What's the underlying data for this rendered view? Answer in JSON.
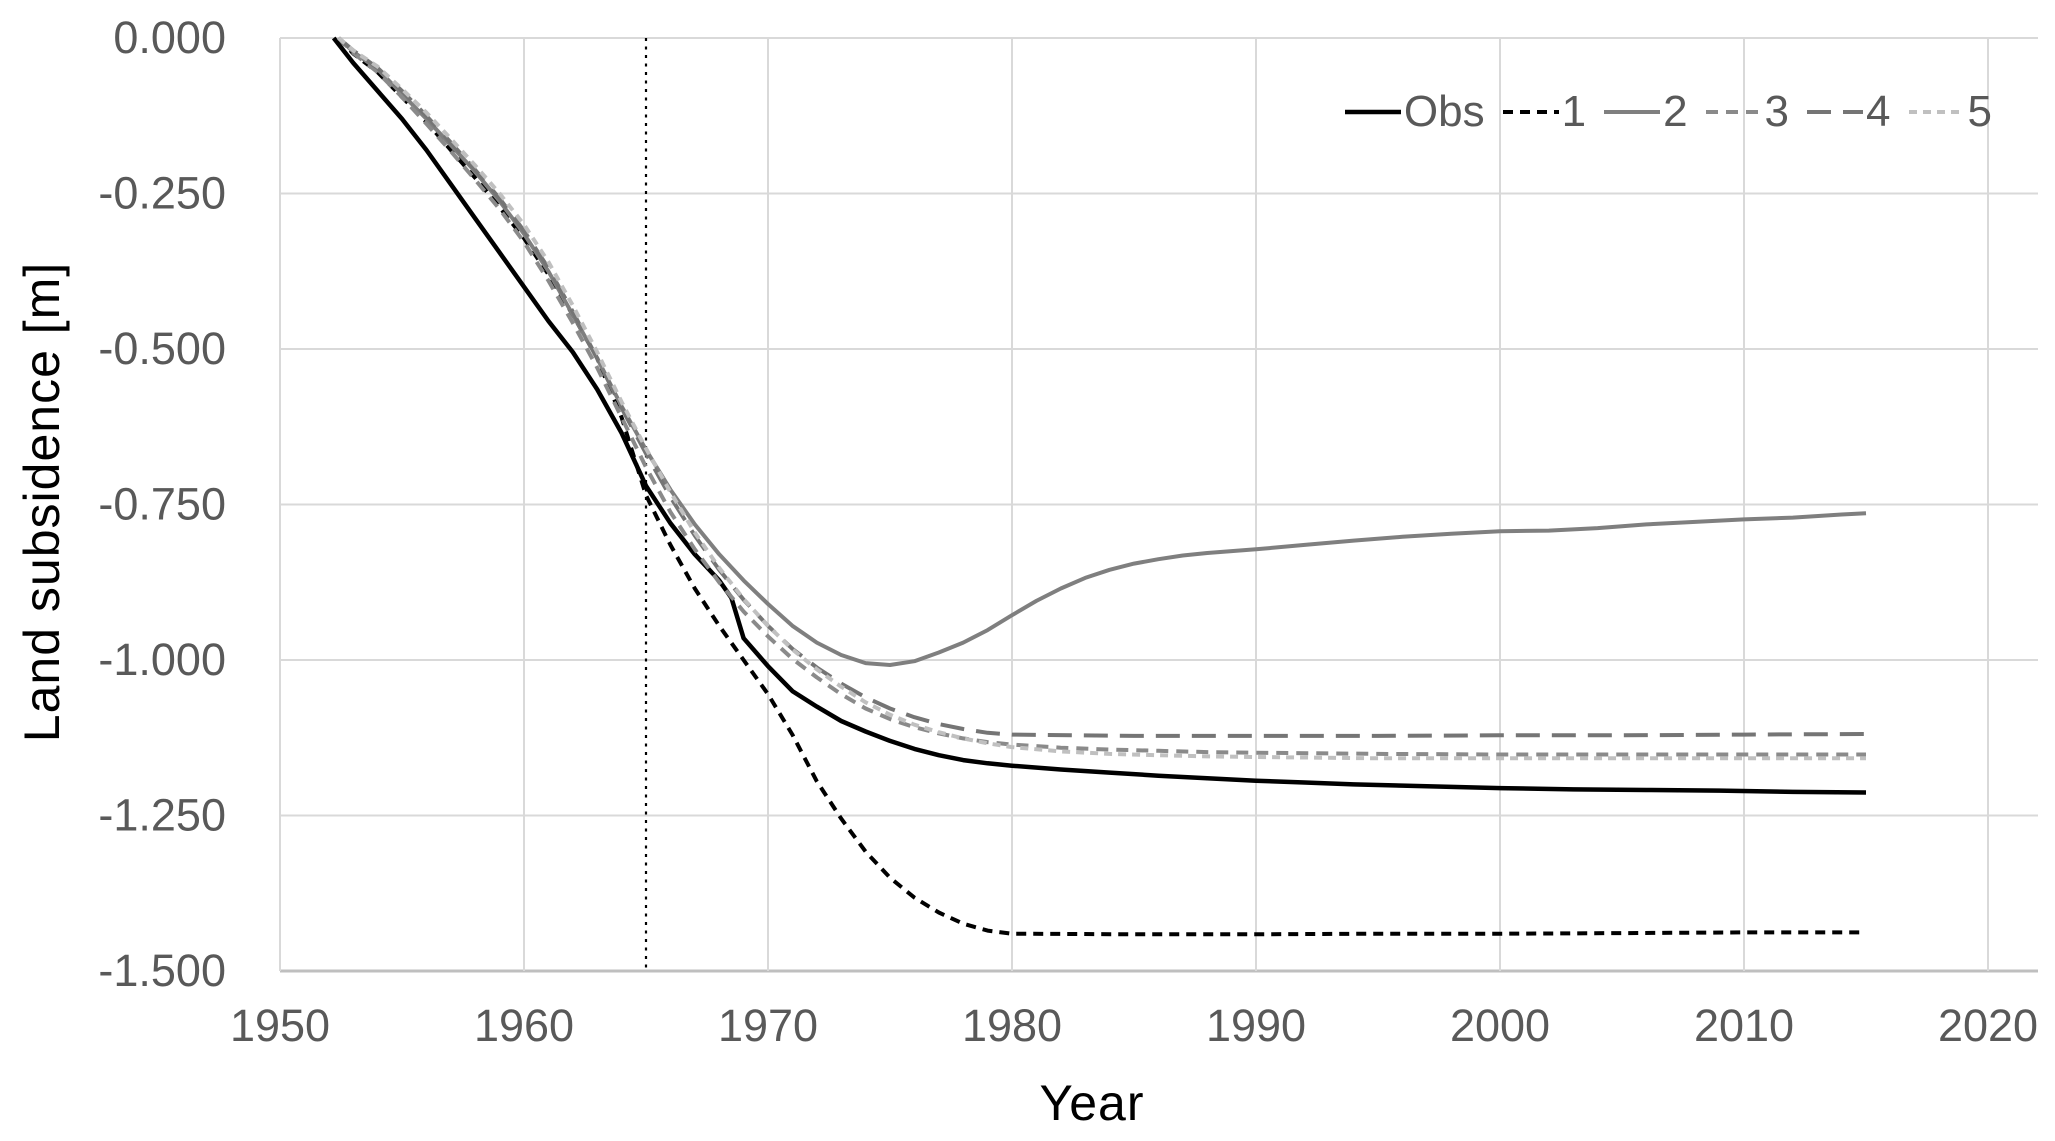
{
  "figure": {
    "x_axis_title": "Year",
    "y_axis_title": "Land subsidence [m]"
  },
  "colors": {
    "background": "#ffffff",
    "gridline": "#d9d9d9",
    "bottom_axis": "#bfbfbf",
    "tick_label": "#595959",
    "legend_text": "#595959",
    "annotation_line": "#000000"
  },
  "chart_data": {
    "type": "line",
    "title": "",
    "xlabel": "Year",
    "ylabel": "Land subsidence [m]",
    "xlim": [
      1950,
      2020
    ],
    "ylim": [
      -1.5,
      0
    ],
    "grid": true,
    "legend_position": "top-right-inside",
    "x_ticks": [
      1950,
      1960,
      1970,
      1980,
      1990,
      2000,
      2010,
      2020
    ],
    "x_tick_labels": [
      "1950",
      "1960",
      "1970",
      "1980",
      "1990",
      "2000",
      "2010",
      "2020"
    ],
    "y_ticks": [
      0,
      -0.25,
      -0.5,
      -0.75,
      -1.0,
      -1.25,
      -1.5
    ],
    "y_tick_labels": [
      "0.000",
      "-0.250",
      "-0.500",
      "-0.750",
      "-1.000",
      "-1.250",
      "-1.500"
    ],
    "annotations": [
      {
        "type": "vline",
        "x": 1965,
        "style": "dotted",
        "color": "#000000"
      }
    ],
    "series": [
      {
        "name": "Obs",
        "color": "#000000",
        "dash": "",
        "width": 4.5,
        "points": [
          [
            1952.2,
            0
          ],
          [
            1953,
            -0.04
          ],
          [
            1954,
            -0.085
          ],
          [
            1955,
            -0.13
          ],
          [
            1956,
            -0.18
          ],
          [
            1957,
            -0.235
          ],
          [
            1958,
            -0.29
          ],
          [
            1959,
            -0.345
          ],
          [
            1960,
            -0.4
          ],
          [
            1961,
            -0.455
          ],
          [
            1962,
            -0.505
          ],
          [
            1963,
            -0.565
          ],
          [
            1964,
            -0.635
          ],
          [
            1965,
            -0.72
          ],
          [
            1966,
            -0.78
          ],
          [
            1967,
            -0.83
          ],
          [
            1968,
            -0.872
          ],
          [
            1968.5,
            -0.9
          ],
          [
            1969,
            -0.965
          ],
          [
            1970,
            -1.01
          ],
          [
            1971,
            -1.05
          ],
          [
            1972,
            -1.075
          ],
          [
            1973,
            -1.098
          ],
          [
            1974,
            -1.115
          ],
          [
            1975,
            -1.13
          ],
          [
            1976,
            -1.143
          ],
          [
            1977,
            -1.153
          ],
          [
            1978,
            -1.161
          ],
          [
            1979,
            -1.166
          ],
          [
            1980,
            -1.17
          ],
          [
            1982,
            -1.176
          ],
          [
            1984,
            -1.181
          ],
          [
            1986,
            -1.186
          ],
          [
            1988,
            -1.19
          ],
          [
            1990,
            -1.194
          ],
          [
            1992,
            -1.197
          ],
          [
            1994,
            -1.2
          ],
          [
            1996,
            -1.202
          ],
          [
            1998,
            -1.204
          ],
          [
            2000,
            -1.206
          ],
          [
            2003,
            -1.208
          ],
          [
            2006,
            -1.209
          ],
          [
            2009,
            -1.21
          ],
          [
            2012,
            -1.212
          ],
          [
            2015,
            -1.213
          ]
        ]
      },
      {
        "name": "1",
        "color": "#000000",
        "dash": "10 7",
        "width": 4,
        "points": [
          [
            1952.4,
            0
          ],
          [
            1953,
            -0.025
          ],
          [
            1954,
            -0.055
          ],
          [
            1955,
            -0.095
          ],
          [
            1956,
            -0.135
          ],
          [
            1957,
            -0.18
          ],
          [
            1958,
            -0.225
          ],
          [
            1959,
            -0.272
          ],
          [
            1960,
            -0.322
          ],
          [
            1961,
            -0.38
          ],
          [
            1962,
            -0.445
          ],
          [
            1963,
            -0.515
          ],
          [
            1964,
            -0.61
          ],
          [
            1965,
            -0.735
          ],
          [
            1966,
            -0.815
          ],
          [
            1967,
            -0.885
          ],
          [
            1968,
            -0.945
          ],
          [
            1969,
            -1.0
          ],
          [
            1970,
            -1.055
          ],
          [
            1971,
            -1.12
          ],
          [
            1972,
            -1.195
          ],
          [
            1973,
            -1.255
          ],
          [
            1974,
            -1.308
          ],
          [
            1975,
            -1.35
          ],
          [
            1976,
            -1.382
          ],
          [
            1977,
            -1.406
          ],
          [
            1978,
            -1.424
          ],
          [
            1979,
            -1.435
          ],
          [
            1980,
            -1.44
          ],
          [
            1985,
            -1.441
          ],
          [
            1990,
            -1.441
          ],
          [
            1995,
            -1.44
          ],
          [
            2000,
            -1.44
          ],
          [
            2005,
            -1.439
          ],
          [
            2010,
            -1.438
          ],
          [
            2015,
            -1.438
          ]
        ]
      },
      {
        "name": "2",
        "color": "#7f7f7f",
        "dash": "",
        "width": 4,
        "points": [
          [
            1952.4,
            0
          ],
          [
            1953,
            -0.022
          ],
          [
            1954,
            -0.05
          ],
          [
            1955,
            -0.09
          ],
          [
            1956,
            -0.13
          ],
          [
            1957,
            -0.172
          ],
          [
            1958,
            -0.215
          ],
          [
            1959,
            -0.262
          ],
          [
            1960,
            -0.315
          ],
          [
            1961,
            -0.375
          ],
          [
            1962,
            -0.445
          ],
          [
            1963,
            -0.515
          ],
          [
            1964,
            -0.592
          ],
          [
            1965,
            -0.662
          ],
          [
            1966,
            -0.726
          ],
          [
            1967,
            -0.782
          ],
          [
            1968,
            -0.83
          ],
          [
            1969,
            -0.872
          ],
          [
            1970,
            -0.91
          ],
          [
            1971,
            -0.945
          ],
          [
            1972,
            -0.972
          ],
          [
            1973,
            -0.992
          ],
          [
            1974,
            -1.005
          ],
          [
            1975,
            -1.008
          ],
          [
            1976,
            -1.002
          ],
          [
            1977,
            -0.988
          ],
          [
            1978,
            -0.972
          ],
          [
            1979,
            -0.952
          ],
          [
            1980,
            -0.928
          ],
          [
            1981,
            -0.905
          ],
          [
            1982,
            -0.885
          ],
          [
            1983,
            -0.868
          ],
          [
            1984,
            -0.855
          ],
          [
            1985,
            -0.845
          ],
          [
            1986,
            -0.838
          ],
          [
            1987,
            -0.832
          ],
          [
            1988,
            -0.828
          ],
          [
            1989,
            -0.825
          ],
          [
            1990,
            -0.822
          ],
          [
            1992,
            -0.815
          ],
          [
            1994,
            -0.808
          ],
          [
            1996,
            -0.802
          ],
          [
            1998,
            -0.797
          ],
          [
            2000,
            -0.793
          ],
          [
            2002,
            -0.792
          ],
          [
            2004,
            -0.788
          ],
          [
            2006,
            -0.782
          ],
          [
            2008,
            -0.778
          ],
          [
            2010,
            -0.774
          ],
          [
            2012,
            -0.771
          ],
          [
            2014,
            -0.766
          ],
          [
            2015,
            -0.764
          ]
        ]
      },
      {
        "name": "3",
        "color": "#8a8a8a",
        "dash": "12 8",
        "width": 4,
        "points": [
          [
            1952.4,
            0
          ],
          [
            1953,
            -0.024
          ],
          [
            1954,
            -0.055
          ],
          [
            1955,
            -0.095
          ],
          [
            1956,
            -0.138
          ],
          [
            1957,
            -0.182
          ],
          [
            1958,
            -0.228
          ],
          [
            1959,
            -0.275
          ],
          [
            1960,
            -0.328
          ],
          [
            1961,
            -0.39
          ],
          [
            1962,
            -0.458
          ],
          [
            1963,
            -0.53
          ],
          [
            1964,
            -0.61
          ],
          [
            1965,
            -0.69
          ],
          [
            1966,
            -0.762
          ],
          [
            1967,
            -0.822
          ],
          [
            1968,
            -0.875
          ],
          [
            1969,
            -0.922
          ],
          [
            1970,
            -0.962
          ],
          [
            1971,
            -0.998
          ],
          [
            1972,
            -1.028
          ],
          [
            1973,
            -1.055
          ],
          [
            1974,
            -1.078
          ],
          [
            1975,
            -1.095
          ],
          [
            1976,
            -1.108
          ],
          [
            1977,
            -1.118
          ],
          [
            1978,
            -1.126
          ],
          [
            1979,
            -1.132
          ],
          [
            1980,
            -1.136
          ],
          [
            1982,
            -1.141
          ],
          [
            1984,
            -1.144
          ],
          [
            1986,
            -1.146
          ],
          [
            1988,
            -1.148
          ],
          [
            1990,
            -1.149
          ],
          [
            1995,
            -1.151
          ],
          [
            2000,
            -1.152
          ],
          [
            2005,
            -1.152
          ],
          [
            2010,
            -1.152
          ],
          [
            2015,
            -1.152
          ]
        ]
      },
      {
        "name": "4",
        "color": "#757575",
        "dash": "24 12",
        "width": 4,
        "points": [
          [
            1952.4,
            0
          ],
          [
            1953,
            -0.02
          ],
          [
            1954,
            -0.048
          ],
          [
            1955,
            -0.085
          ],
          [
            1956,
            -0.125
          ],
          [
            1957,
            -0.168
          ],
          [
            1958,
            -0.212
          ],
          [
            1959,
            -0.258
          ],
          [
            1960,
            -0.31
          ],
          [
            1961,
            -0.37
          ],
          [
            1962,
            -0.44
          ],
          [
            1963,
            -0.515
          ],
          [
            1964,
            -0.595
          ],
          [
            1965,
            -0.668
          ],
          [
            1966,
            -0.738
          ],
          [
            1967,
            -0.8
          ],
          [
            1968,
            -0.855
          ],
          [
            1969,
            -0.903
          ],
          [
            1970,
            -0.945
          ],
          [
            1971,
            -0.982
          ],
          [
            1972,
            -1.012
          ],
          [
            1973,
            -1.038
          ],
          [
            1974,
            -1.06
          ],
          [
            1975,
            -1.078
          ],
          [
            1976,
            -1.092
          ],
          [
            1977,
            -1.103
          ],
          [
            1978,
            -1.111
          ],
          [
            1979,
            -1.117
          ],
          [
            1980,
            -1.12
          ],
          [
            1985,
            -1.122
          ],
          [
            1990,
            -1.122
          ],
          [
            1995,
            -1.122
          ],
          [
            2000,
            -1.121
          ],
          [
            2005,
            -1.121
          ],
          [
            2010,
            -1.12
          ],
          [
            2015,
            -1.119
          ]
        ]
      },
      {
        "name": "5",
        "color": "#c0c0c0",
        "dash": "8 6",
        "width": 4,
        "points": [
          [
            1952.4,
            0
          ],
          [
            1953,
            -0.02
          ],
          [
            1954,
            -0.046
          ],
          [
            1955,
            -0.082
          ],
          [
            1956,
            -0.12
          ],
          [
            1957,
            -0.162
          ],
          [
            1958,
            -0.205
          ],
          [
            1959,
            -0.25
          ],
          [
            1960,
            -0.3
          ],
          [
            1961,
            -0.36
          ],
          [
            1962,
            -0.43
          ],
          [
            1963,
            -0.505
          ],
          [
            1964,
            -0.585
          ],
          [
            1965,
            -0.66
          ],
          [
            1966,
            -0.73
          ],
          [
            1967,
            -0.795
          ],
          [
            1968,
            -0.852
          ],
          [
            1969,
            -0.902
          ],
          [
            1970,
            -0.945
          ],
          [
            1971,
            -0.983
          ],
          [
            1972,
            -1.015
          ],
          [
            1973,
            -1.043
          ],
          [
            1974,
            -1.068
          ],
          [
            1975,
            -1.088
          ],
          [
            1976,
            -1.104
          ],
          [
            1977,
            -1.116
          ],
          [
            1978,
            -1.126
          ],
          [
            1979,
            -1.134
          ],
          [
            1980,
            -1.14
          ],
          [
            1982,
            -1.147
          ],
          [
            1984,
            -1.151
          ],
          [
            1986,
            -1.153
          ],
          [
            1988,
            -1.155
          ],
          [
            1990,
            -1.156
          ],
          [
            1995,
            -1.158
          ],
          [
            2000,
            -1.158
          ],
          [
            2005,
            -1.158
          ],
          [
            2010,
            -1.158
          ],
          [
            2015,
            -1.158
          ]
        ]
      }
    ]
  }
}
